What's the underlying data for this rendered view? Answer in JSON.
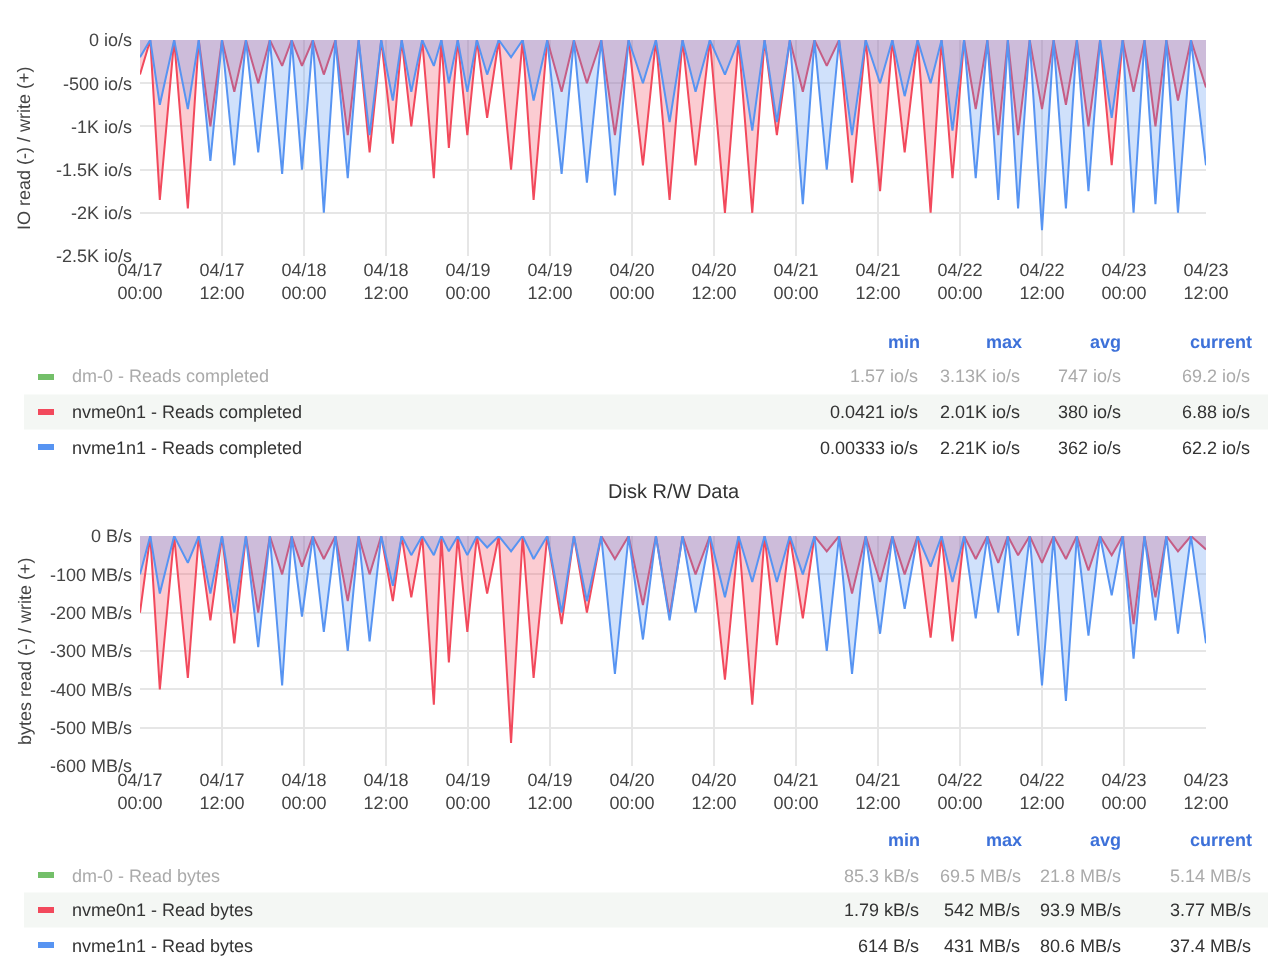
{
  "chart_data": [
    {
      "type": "area",
      "ylabel": "IO read (-) / write (+)",
      "legend": "bottom",
      "grid": true,
      "xlim": [
        "--04-17T00:00",
        "--04-23T12:00"
      ],
      "ylim": [
        -2500,
        0
      ],
      "xticks": [
        {
          "value": "--04-17T00:00",
          "label": "04/17\n00:00"
        },
        {
          "value": "--04-17T12:00",
          "label": "04/17\n12:00"
        },
        {
          "value": "--04-18T00:00",
          "label": "04/18\n00:00"
        },
        {
          "value": "--04-18T12:00",
          "label": "04/18\n12:00"
        },
        {
          "value": "--04-19T00:00",
          "label": "04/19\n00:00"
        },
        {
          "value": "--04-19T12:00",
          "label": "04/19\n12:00"
        },
        {
          "value": "--04-20T00:00",
          "label": "04/20\n00:00"
        },
        {
          "value": "--04-20T12:00",
          "label": "04/20\n12:00"
        },
        {
          "value": "--04-21T00:00",
          "label": "04/21\n00:00"
        },
        {
          "value": "--04-21T12:00",
          "label": "04/21\n12:00"
        },
        {
          "value": "--04-22T00:00",
          "label": "04/22\n00:00"
        },
        {
          "value": "--04-22T12:00",
          "label": "04/22\n12:00"
        },
        {
          "value": "--04-23T00:00",
          "label": "04/23\n00:00"
        },
        {
          "value": "--04-23T12:00",
          "label": "04/23\n12:00"
        }
      ],
      "yticks": [
        {
          "value": 0,
          "label": "0 io/s"
        },
        {
          "value": -500,
          "label": "-500 io/s"
        },
        {
          "value": -1000,
          "label": "-1K io/s"
        },
        {
          "value": -1500,
          "label": "-1.5K io/s"
        },
        {
          "value": -2000,
          "label": "-2K io/s"
        },
        {
          "value": -2500,
          "label": "-2.5K io/s"
        }
      ],
      "x": [
        "--04-17T00:00",
        "--04-17T01:30",
        "--04-17T02:54",
        "--04-17T05:00",
        "--04-17T07:00",
        "--04-17T08:36",
        "--04-17T10:18",
        "--04-17T12:00",
        "--04-17T13:48",
        "--04-17T15:30",
        "--04-17T17:18",
        "--04-17T19:00",
        "--04-17T20:48",
        "--04-17T22:12",
        "--04-17T23:42",
        "--04-18T01:18",
        "--04-18T02:54",
        "--04-18T04:36",
        "--04-18T06:24",
        "--04-18T08:00",
        "--04-18T09:36",
        "--04-18T11:18",
        "--04-18T13:00",
        "--04-18T14:18",
        "--04-18T15:42",
        "--04-18T17:18",
        "--04-18T19:00",
        "--04-18T20:06",
        "--04-18T21:12",
        "--04-18T22:30",
        "--04-18T23:54",
        "--04-19T01:18",
        "--04-19T02:48",
        "--04-19T04:30",
        "--04-19T06:18",
        "--04-19T08:00",
        "--04-19T09:36",
        "--04-19T11:36",
        "--04-19T13:42",
        "--04-19T15:30",
        "--04-19T17:24",
        "--04-19T19:30",
        "--04-19T21:30",
        "--04-19T23:30",
        "--04-20T01:36",
        "--04-20T03:30",
        "--04-20T05:30",
        "--04-20T07:24",
        "--04-20T09:18",
        "--04-20T11:24",
        "--04-20T13:36",
        "--04-20T15:36",
        "--04-20T17:36",
        "--04-20T19:24",
        "--04-20T21:12",
        "--04-20T23:06",
        "--04-21T01:00",
        "--04-21T02:42",
        "--04-21T04:30",
        "--04-21T06:18",
        "--04-21T08:12",
        "--04-21T10:12",
        "--04-21T12:18",
        "--04-21T14:06",
        "--04-21T15:54",
        "--04-21T17:48",
        "--04-21T19:42",
        "--04-21T21:18",
        "--04-21T22:54",
        "--04-22T00:36",
        "--04-22T02:18",
        "--04-22T04:00",
        "--04-22T05:36",
        "--04-22T07:00",
        "--04-22T08:30",
        "--04-22T10:12",
        "--04-22T12:00",
        "--04-22T13:42",
        "--04-22T15:30",
        "--04-22T17:06",
        "--04-22T18:48",
        "--04-22T20:30",
        "--04-22T22:12",
        "--04-22T23:48",
        "--04-23T01:24",
        "--04-23T03:00",
        "--04-23T04:36",
        "--04-23T06:12",
        "--04-23T07:54",
        "--04-23T09:48",
        "--04-23T12:00"
      ],
      "series": [
        {
          "name": "dm-0 - Reads completed",
          "color": "#73bf69",
          "values": [
            null,
            null,
            null,
            null,
            null,
            null,
            null,
            null,
            null,
            null,
            null,
            null,
            null,
            null,
            null,
            null,
            null,
            null,
            null,
            null,
            null,
            null,
            null,
            null,
            null,
            null,
            null,
            null,
            null,
            null,
            null,
            null,
            null,
            null,
            null,
            null,
            null,
            null,
            null,
            null,
            null,
            null,
            null,
            null,
            null,
            null,
            null,
            null,
            null,
            null,
            null,
            null,
            null,
            null,
            null,
            null,
            null,
            null,
            null,
            null,
            null,
            null,
            null,
            null,
            null,
            null,
            null,
            null,
            null,
            null,
            null,
            null,
            null,
            null,
            null,
            null,
            null,
            null,
            null,
            null,
            null,
            null,
            null,
            null,
            null,
            null,
            null,
            null,
            null,
            null,
            null
          ]
        },
        {
          "name": "nvme0n1 - Reads completed",
          "color": "#f2495c",
          "values": [
            -400,
            0,
            -1850,
            0,
            -1950,
            0,
            -1000,
            0,
            -600,
            0,
            -500,
            0,
            -300,
            0,
            -300,
            0,
            -400,
            0,
            -1100,
            0,
            -1300,
            0,
            -1200,
            0,
            -1000,
            0,
            -1600,
            0,
            -1250,
            0,
            -1100,
            0,
            -900,
            0,
            -1500,
            0,
            -1850,
            0,
            -600,
            0,
            -500,
            0,
            -1100,
            0,
            -1450,
            0,
            -1850,
            0,
            -1450,
            0,
            -2000,
            0,
            -2000,
            0,
            -1100,
            0,
            -600,
            0,
            -300,
            0,
            -1650,
            0,
            -1750,
            0,
            -1300,
            0,
            -2000,
            0,
            -1600,
            0,
            -800,
            0,
            -1100,
            0,
            -1100,
            0,
            -800,
            0,
            -750,
            0,
            -1000,
            0,
            -1450,
            0,
            -600,
            0,
            -1000,
            0,
            -700,
            0,
            -550
          ]
        },
        {
          "name": "nvme1n1 - Reads completed",
          "color": "#5794f2",
          "values": [
            -200,
            0,
            -750,
            0,
            -800,
            0,
            -1400,
            0,
            -1450,
            0,
            -1300,
            0,
            -1550,
            0,
            -1500,
            0,
            -2000,
            0,
            -1600,
            0,
            -1100,
            0,
            -700,
            0,
            -600,
            0,
            -300,
            0,
            -500,
            0,
            -600,
            0,
            -400,
            0,
            -200,
            0,
            -700,
            0,
            -1550,
            0,
            -1650,
            0,
            -1800,
            0,
            -500,
            0,
            -950,
            0,
            -600,
            0,
            -400,
            0,
            -1050,
            0,
            -950,
            0,
            -1900,
            0,
            -1500,
            0,
            -1100,
            0,
            -500,
            0,
            -650,
            0,
            -500,
            0,
            -1050,
            0,
            -1600,
            0,
            -1850,
            0,
            -1950,
            0,
            -2200,
            0,
            -1950,
            0,
            -1750,
            0,
            -900,
            0,
            -2000,
            0,
            -1900,
            0,
            -2000,
            0,
            -1450
          ]
        }
      ],
      "annotations": [
        "min",
        "max",
        "avg",
        "current",
        "1.57 io/s",
        "3.13K io/s",
        "747 io/s",
        "69.2 io/s",
        "0.0421 io/s",
        "2.01K io/s",
        "380 io/s",
        "6.88 io/s",
        "0.00333 io/s",
        "2.21K io/s",
        "362 io/s",
        "62.2 io/s"
      ]
    },
    {
      "type": "area",
      "title": "Disk R/W Data",
      "ylabel": "bytes read (-) / write (+)",
      "legend": "bottom",
      "grid": true,
      "xlim": [
        "--04-17T00:00",
        "--04-23T12:00"
      ],
      "ylim": [
        -600,
        0
      ],
      "xticks": [
        {
          "value": "--04-17T00:00",
          "label": "04/17\n00:00"
        },
        {
          "value": "--04-17T12:00",
          "label": "04/17\n12:00"
        },
        {
          "value": "--04-18T00:00",
          "label": "04/18\n00:00"
        },
        {
          "value": "--04-18T12:00",
          "label": "04/18\n12:00"
        },
        {
          "value": "--04-19T00:00",
          "label": "04/19\n00:00"
        },
        {
          "value": "--04-19T12:00",
          "label": "04/19\n12:00"
        },
        {
          "value": "--04-20T00:00",
          "label": "04/20\n00:00"
        },
        {
          "value": "--04-20T12:00",
          "label": "04/20\n12:00"
        },
        {
          "value": "--04-21T00:00",
          "label": "04/21\n00:00"
        },
        {
          "value": "--04-21T12:00",
          "label": "04/21\n12:00"
        },
        {
          "value": "--04-22T00:00",
          "label": "04/22\n00:00"
        },
        {
          "value": "--04-22T12:00",
          "label": "04/22\n12:00"
        },
        {
          "value": "--04-23T00:00",
          "label": "04/23\n00:00"
        },
        {
          "value": "--04-23T12:00",
          "label": "04/23\n12:00"
        }
      ],
      "yticks": [
        {
          "value": 0,
          "label": "0 B/s"
        },
        {
          "value": -100,
          "label": "-100 MB/s"
        },
        {
          "value": -200,
          "label": "-200 MB/s"
        },
        {
          "value": -300,
          "label": "-300 MB/s"
        },
        {
          "value": -400,
          "label": "-400 MB/s"
        },
        {
          "value": -500,
          "label": "-500 MB/s"
        },
        {
          "value": -600,
          "label": "-600 MB/s"
        }
      ],
      "x": [
        "--04-17T00:00",
        "--04-17T01:30",
        "--04-17T02:54",
        "--04-17T05:00",
        "--04-17T07:00",
        "--04-17T08:36",
        "--04-17T10:18",
        "--04-17T12:00",
        "--04-17T13:48",
        "--04-17T15:30",
        "--04-17T17:18",
        "--04-17T19:00",
        "--04-17T20:48",
        "--04-17T22:12",
        "--04-17T23:42",
        "--04-18T01:18",
        "--04-18T02:54",
        "--04-18T04:36",
        "--04-18T06:24",
        "--04-18T08:00",
        "--04-18T09:36",
        "--04-18T11:18",
        "--04-18T13:00",
        "--04-18T14:18",
        "--04-18T15:42",
        "--04-18T17:18",
        "--04-18T19:00",
        "--04-18T20:06",
        "--04-18T21:12",
        "--04-18T22:30",
        "--04-18T23:54",
        "--04-19T01:18",
        "--04-19T02:48",
        "--04-19T04:30",
        "--04-19T06:18",
        "--04-19T08:00",
        "--04-19T09:36",
        "--04-19T11:36",
        "--04-19T13:42",
        "--04-19T15:30",
        "--04-19T17:24",
        "--04-19T19:30",
        "--04-19T21:30",
        "--04-19T23:30",
        "--04-20T01:36",
        "--04-20T03:30",
        "--04-20T05:30",
        "--04-20T07:24",
        "--04-20T09:18",
        "--04-20T11:24",
        "--04-20T13:36",
        "--04-20T15:36",
        "--04-20T17:36",
        "--04-20T19:24",
        "--04-20T21:12",
        "--04-20T23:06",
        "--04-21T01:00",
        "--04-21T02:42",
        "--04-21T04:30",
        "--04-21T06:18",
        "--04-21T08:12",
        "--04-21T10:12",
        "--04-21T12:18",
        "--04-21T14:06",
        "--04-21T15:54",
        "--04-21T17:48",
        "--04-21T19:42",
        "--04-21T21:18",
        "--04-21T22:54",
        "--04-22T00:36",
        "--04-22T02:18",
        "--04-22T04:00",
        "--04-22T05:36",
        "--04-22T07:00",
        "--04-22T08:30",
        "--04-22T10:12",
        "--04-22T12:00",
        "--04-22T13:42",
        "--04-22T15:30",
        "--04-22T17:06",
        "--04-22T18:48",
        "--04-22T20:30",
        "--04-22T22:12",
        "--04-22T23:48",
        "--04-23T01:24",
        "--04-23T03:00",
        "--04-23T04:36",
        "--04-23T06:12",
        "--04-23T07:54",
        "--04-23T09:48",
        "--04-23T12:00"
      ],
      "series": [
        {
          "name": "dm-0 - Read bytes",
          "color": "#73bf69",
          "values": [
            null,
            null,
            null,
            null,
            null,
            null,
            null,
            null,
            null,
            null,
            null,
            null,
            null,
            null,
            null,
            null,
            null,
            null,
            null,
            null,
            null,
            null,
            null,
            null,
            null,
            null,
            null,
            null,
            null,
            null,
            null,
            null,
            null,
            null,
            null,
            null,
            null,
            null,
            null,
            null,
            null,
            null,
            null,
            null,
            null,
            null,
            null,
            null,
            null,
            null,
            null,
            null,
            null,
            null,
            null,
            null,
            null,
            null,
            null,
            null,
            null,
            null,
            null,
            null,
            null,
            null,
            null,
            null,
            null,
            null,
            null,
            null,
            null,
            null,
            null,
            null,
            null,
            null,
            null,
            null,
            null,
            null,
            null,
            null,
            null,
            null,
            null,
            null,
            null,
            null,
            null
          ]
        },
        {
          "name": "nvme0n1 - Read bytes",
          "color": "#f2495c",
          "values": [
            -200,
            0,
            -400,
            0,
            -370,
            0,
            -220,
            0,
            -280,
            0,
            -200,
            0,
            -100,
            0,
            -80,
            0,
            -60,
            0,
            -170,
            0,
            -100,
            0,
            -170,
            0,
            -160,
            0,
            -440,
            0,
            -330,
            0,
            -250,
            0,
            -150,
            0,
            -540,
            0,
            -370,
            0,
            -230,
            0,
            -200,
            0,
            -60,
            0,
            -180,
            0,
            -210,
            0,
            -100,
            0,
            -375,
            0,
            -440,
            0,
            -285,
            0,
            -215,
            0,
            -40,
            0,
            -150,
            0,
            -120,
            0,
            -100,
            0,
            -265,
            0,
            -275,
            0,
            -60,
            0,
            -70,
            0,
            -50,
            0,
            -70,
            0,
            -60,
            0,
            -90,
            0,
            -50,
            0,
            -230,
            0,
            -160,
            0,
            -40,
            0,
            -35
          ]
        },
        {
          "name": "nvme1n1 - Read bytes",
          "color": "#5794f2",
          "values": [
            -100,
            0,
            -150,
            0,
            -70,
            0,
            -150,
            0,
            -200,
            0,
            -290,
            0,
            -390,
            0,
            -210,
            0,
            -250,
            0,
            -300,
            0,
            -275,
            0,
            -130,
            0,
            -50,
            0,
            -50,
            0,
            -40,
            0,
            -50,
            0,
            -30,
            0,
            -40,
            0,
            -60,
            0,
            -200,
            0,
            -170,
            0,
            -360,
            0,
            -270,
            0,
            -220,
            0,
            -200,
            0,
            -160,
            0,
            -120,
            0,
            -120,
            0,
            -100,
            0,
            -300,
            0,
            -360,
            0,
            -255,
            0,
            -190,
            0,
            -80,
            0,
            -120,
            0,
            -215,
            0,
            -200,
            0,
            -260,
            0,
            -390,
            0,
            -430,
            0,
            -260,
            0,
            -155,
            0,
            -320,
            0,
            -220,
            0,
            -255,
            0,
            -280
          ]
        }
      ],
      "annotations": [
        "min",
        "max",
        "avg",
        "current",
        "85.3 kB/s",
        "69.5 MB/s",
        "21.8 MB/s",
        "5.14 MB/s",
        "1.79 kB/s",
        "542 MB/s",
        "93.9 MB/s",
        "3.77 MB/s",
        "614 B/s",
        "431 MB/s",
        "80.6 MB/s",
        "37.4 MB/s"
      ]
    }
  ]
}
